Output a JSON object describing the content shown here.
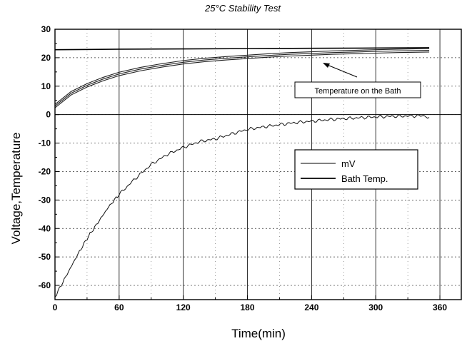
{
  "chart_data": {
    "type": "line",
    "title": "25°C Stability Test",
    "xlabel": "Time(min)",
    "ylabel": "Voltage,Temperature",
    "xlim": [
      0,
      380
    ],
    "ylim": [
      -65,
      30
    ],
    "xticks": [
      "0",
      "60",
      "120",
      "180",
      "240",
      "300",
      "360"
    ],
    "yticks": [
      "30",
      "20",
      "10",
      "0",
      "-10",
      "-20",
      "-30",
      "-40",
      "-50",
      "-60"
    ],
    "grid": true,
    "legend_position": "right",
    "legend": [
      "mV",
      "Bath Temp."
    ],
    "annotation": "Temperature on the Bath",
    "series": [
      {
        "name": "mV",
        "x": [
          0,
          10,
          20,
          30,
          40,
          50,
          60,
          75,
          90,
          105,
          120,
          135,
          150,
          165,
          180,
          195,
          210,
          225,
          240,
          255,
          270,
          285,
          300,
          315,
          330,
          345,
          350
        ],
        "y": [
          -64,
          -57,
          -50,
          -43.5,
          -38,
          -32.5,
          -28,
          -22.5,
          -17.5,
          -14,
          -11.5,
          -9.5,
          -8.5,
          -6.8,
          -5.2,
          -4.3,
          -3.5,
          -2.8,
          -2.3,
          -1.8,
          -1.4,
          -1.1,
          -0.8,
          -0.6,
          -0.5,
          -0.4,
          -1
        ]
      },
      {
        "name": "Bath Temp.",
        "x": [
          0,
          60,
          120,
          180,
          240,
          300,
          350
        ],
        "y": [
          22.8,
          23,
          23.1,
          23.2,
          23.3,
          23.4,
          23.5
        ]
      },
      {
        "name": "Temperature on the Bath",
        "x": [
          0,
          15,
          30,
          45,
          60,
          80,
          100,
          120,
          140,
          160,
          180,
          200,
          220,
          240,
          260,
          280,
          300,
          320,
          350
        ],
        "y": [
          3,
          7.5,
          10.3,
          12.5,
          14.3,
          16,
          17.3,
          18.4,
          19.2,
          19.8,
          20.3,
          20.8,
          21.2,
          21.5,
          21.8,
          22,
          22.2,
          22.4,
          22.6
        ]
      }
    ]
  }
}
